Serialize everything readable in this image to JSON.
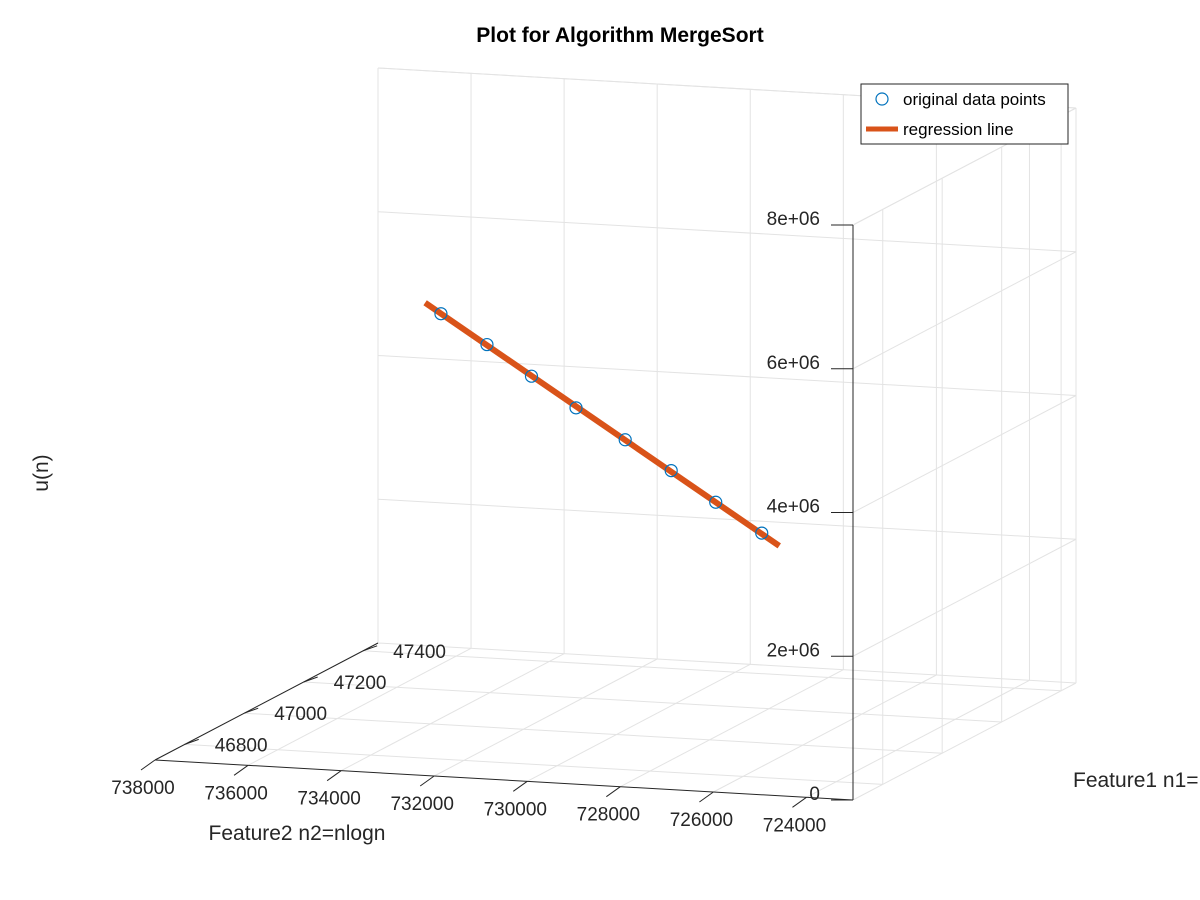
{
  "chart_data": {
    "type": "scatter",
    "title": "Plot for Algorithm MergeSort",
    "xlabel": "Feature2 n2=nlogn",
    "ylabel": "Feature1 n1=",
    "zlabel": "u(n)",
    "x_ticks": [
      "738000",
      "736000",
      "734000",
      "732000",
      "730000",
      "728000",
      "726000",
      "724000"
    ],
    "y_ticks": [
      "46800",
      "47000",
      "47200",
      "47400"
    ],
    "z_ticks": [
      "0",
      "2e+06",
      "4e+06",
      "6e+06",
      "8e+06"
    ],
    "xlim": [
      723000,
      738000
    ],
    "ylim": [
      46700,
      47450
    ],
    "zlim": [
      0,
      8000000
    ],
    "grid": true,
    "legend": {
      "placement": "top-right",
      "entries": [
        {
          "label": "original data points",
          "marker": "circle",
          "color": "#0072BD"
        },
        {
          "label": "regression line",
          "marker": "line",
          "color": "#D95319"
        }
      ]
    },
    "series": [
      {
        "name": "original data points",
        "kind": "markers",
        "color": "#0072BD",
        "points": [
          {
            "x": 736200,
            "y": 47380,
            "z": 4800000
          },
          {
            "x": 734700,
            "y": 47300,
            "z": 4600000
          },
          {
            "x": 733200,
            "y": 47215,
            "z": 4400000
          },
          {
            "x": 731700,
            "y": 47130,
            "z": 4200000
          },
          {
            "x": 730100,
            "y": 47045,
            "z": 4000000
          },
          {
            "x": 728600,
            "y": 46965,
            "z": 3800000
          },
          {
            "x": 727100,
            "y": 46880,
            "z": 3600000
          },
          {
            "x": 725600,
            "y": 46800,
            "z": 3400000
          }
        ]
      },
      {
        "name": "regression line",
        "kind": "line",
        "color": "#D95319",
        "points": [
          {
            "x": 736700,
            "y": 47405,
            "z": 4880000
          },
          {
            "x": 725000,
            "y": 46765,
            "z": 3320000
          }
        ]
      }
    ]
  }
}
